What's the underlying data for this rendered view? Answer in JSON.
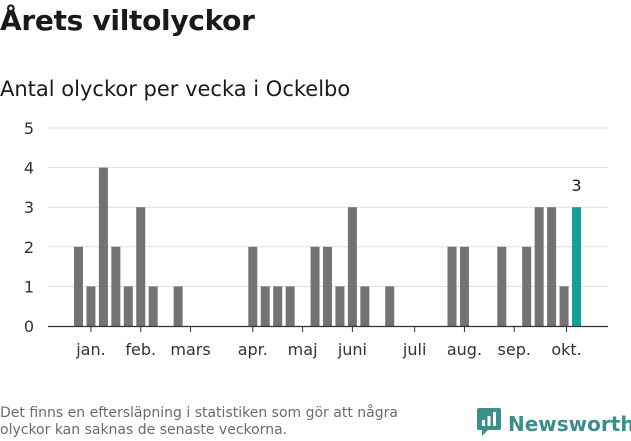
{
  "header": {
    "title": "Årets viltolyckor",
    "subtitle": "Antal olyckor per vecka i Ockelbo"
  },
  "chart_data": {
    "type": "bar",
    "title": "Årets viltolyckor",
    "subtitle": "Antal olyckor per vecka i Ockelbo",
    "xlabel": "",
    "ylabel": "",
    "ylim": [
      0,
      5
    ],
    "yticks": [
      0,
      1,
      2,
      3,
      4,
      5
    ],
    "grid": true,
    "categories": [
      "v1",
      "v2",
      "v3",
      "v4",
      "v5",
      "v6",
      "v7",
      "v8",
      "v9",
      "v10",
      "v11",
      "v12",
      "v13",
      "v14",
      "v15",
      "v16",
      "v17",
      "v18",
      "v19",
      "v20",
      "v21",
      "v22",
      "v23",
      "v24",
      "v25",
      "v26",
      "v27",
      "v28",
      "v29",
      "v30",
      "v31",
      "v32",
      "v33",
      "v34",
      "v35",
      "v36",
      "v37",
      "v38",
      "v39",
      "v40",
      "v41"
    ],
    "values": [
      2,
      1,
      4,
      2,
      1,
      3,
      1,
      0,
      1,
      0,
      0,
      0,
      0,
      0,
      2,
      1,
      1,
      1,
      0,
      2,
      2,
      1,
      3,
      1,
      0,
      1,
      0,
      0,
      0,
      0,
      2,
      2,
      0,
      0,
      2,
      0,
      2,
      3,
      3,
      1,
      3
    ],
    "month_labels": [
      {
        "label": "jan.",
        "week": 2
      },
      {
        "label": "feb.",
        "week": 6
      },
      {
        "label": "mars",
        "week": 10
      },
      {
        "label": "apr.",
        "week": 15
      },
      {
        "label": "maj",
        "week": 19
      },
      {
        "label": "juni",
        "week": 23
      },
      {
        "label": "juli",
        "week": 28
      },
      {
        "label": "aug.",
        "week": 32
      },
      {
        "label": "sep.",
        "week": 36
      },
      {
        "label": "okt.",
        "week": 40.2
      }
    ],
    "highlight": {
      "week": 41,
      "value": 3,
      "label": "3"
    },
    "colors": {
      "bar": "#737373",
      "highlight": "#14a098",
      "grid": "#dddddd",
      "axis": "#333333"
    }
  },
  "footer": {
    "note": "Det finns en eftersläpning i statistiken som gör att några olyckor kan saknas de senaste veckorna.",
    "brand": "Newsworthy",
    "brand_icon": "newsworthy-logo-icon",
    "brand_color": "#3b8f89"
  }
}
